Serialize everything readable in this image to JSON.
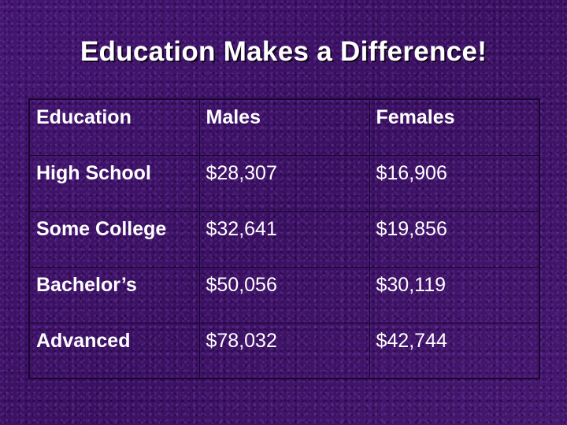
{
  "slide": {
    "title": "Education Makes a Difference!"
  },
  "table": {
    "headers": [
      "Education",
      "Males",
      "Females"
    ],
    "rows": [
      [
        "High School",
        "$28,307",
        "$16,906"
      ],
      [
        "Some College",
        "$32,641",
        "$19,856"
      ],
      [
        "Bachelor’s",
        "$50,056",
        "$30,119"
      ],
      [
        "Advanced",
        "$78,032",
        "$42,744"
      ]
    ]
  },
  "colors": {
    "background": "#3f1466",
    "text": "#ffffff",
    "grid": "#1a0530"
  }
}
